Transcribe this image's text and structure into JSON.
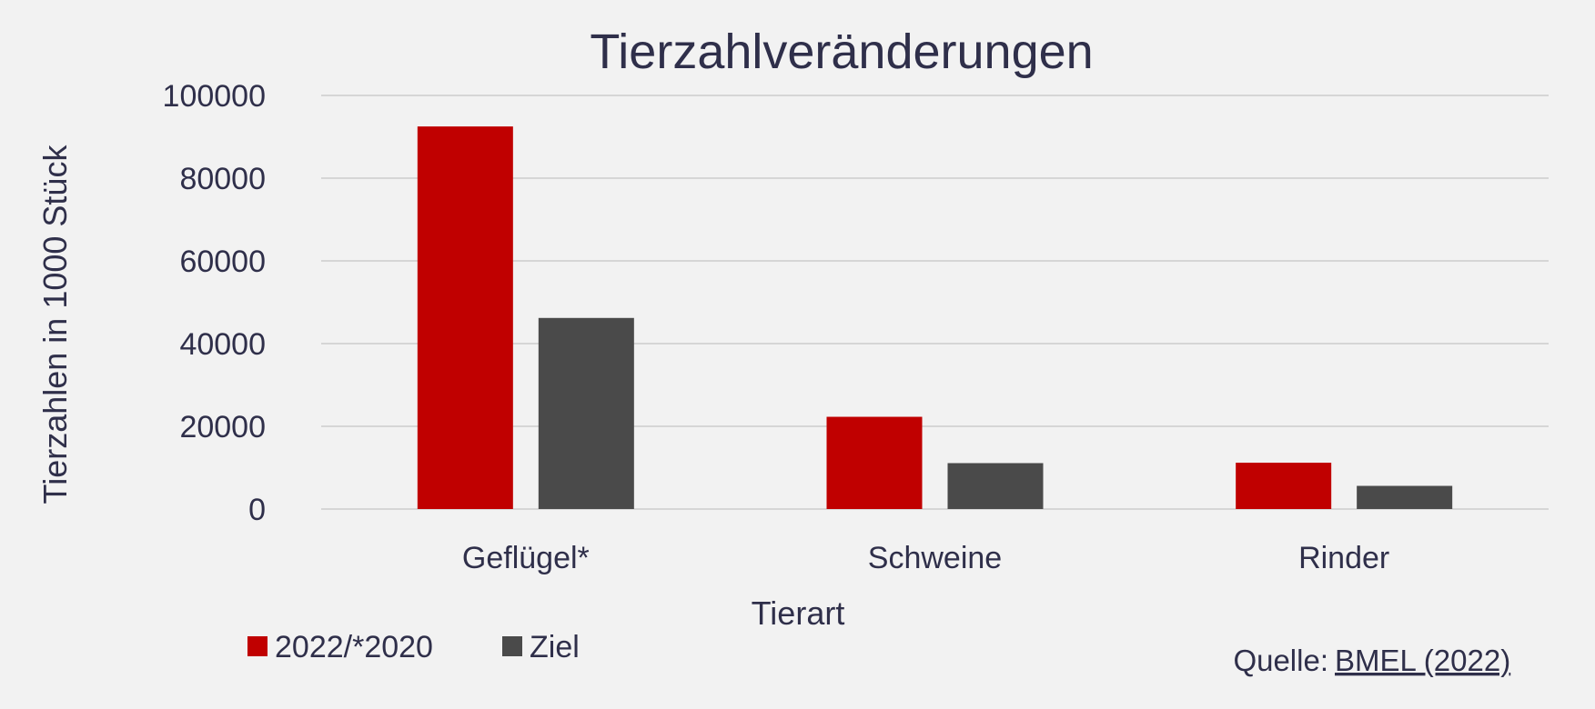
{
  "chart_data": {
    "type": "bar",
    "title": "Tierzahlveränderungen",
    "xlabel": "Tierart",
    "ylabel": "Tierzahlen in 1000 Stück",
    "categories": [
      "Geflügel*",
      "Schweine",
      "Rinder"
    ],
    "series": [
      {
        "name": "2022/*2020",
        "values": [
          92500,
          22300,
          11200
        ],
        "color": "#c00000"
      },
      {
        "name": "Ziel",
        "values": [
          46200,
          11100,
          5600
        ],
        "color": "#4a4a4a"
      }
    ],
    "ylim": [
      0,
      100000
    ],
    "yticks": [
      "0",
      "20000",
      "40000",
      "60000",
      "80000",
      "100000"
    ],
    "grid": true,
    "legend_position": "bottom-left"
  },
  "source": {
    "label": "Quelle:",
    "link_text": "BMEL (2022)"
  }
}
